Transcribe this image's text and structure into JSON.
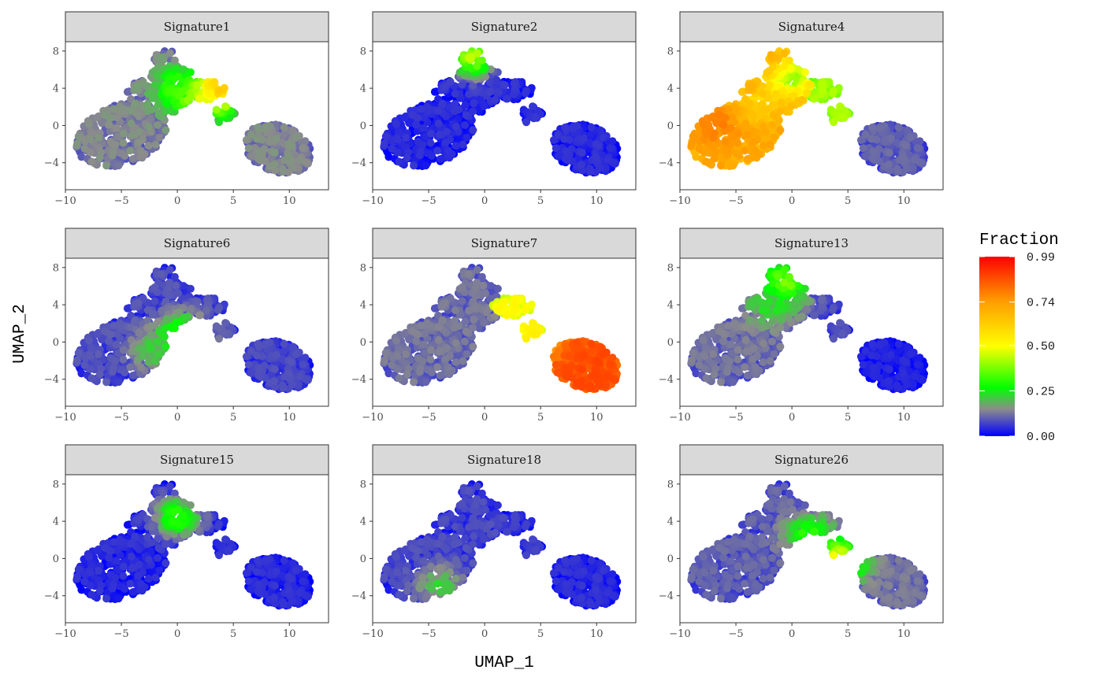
{
  "chart_data": {
    "type": "scatter",
    "description_free": true,
    "x_axis_label": "UMAP_1",
    "y_axis_label": "UMAP_2",
    "x_ticks": [
      -10,
      -5,
      0,
      5,
      10
    ],
    "y_ticks": [
      -4,
      0,
      4,
      8
    ],
    "x_tick_labels": [
      "−10",
      "−5",
      "0",
      "5",
      "10"
    ],
    "y_tick_labels": [
      "−4",
      "0",
      "4",
      "8"
    ],
    "xlim": [
      -10,
      13.5
    ],
    "ylim": [
      -6.9,
      9
    ],
    "colorbar": {
      "title": "Fraction",
      "range": [
        0,
        0.99
      ],
      "ticks": [
        0.0,
        0.25,
        0.5,
        0.74,
        0.99
      ],
      "tick_labels": [
        "0.00",
        "0.25",
        "0.50",
        "0.74",
        "0.99"
      ],
      "colors": [
        "#0000ff",
        "#8c8c8c",
        "#00ff00",
        "#ffff00",
        "#ff8c00",
        "#ff0000"
      ]
    },
    "panels": [
      {
        "title": "Signature1",
        "highlight_regions": [
          {
            "x": 3.5,
            "y": 4,
            "value": 0.72
          },
          {
            "x": 2,
            "y": 3,
            "value": 0.5
          },
          {
            "x": 0,
            "y": 4,
            "value": 0.3
          }
        ],
        "left_value": 0.12,
        "right_value": 0.12
      },
      {
        "title": "Signature2",
        "highlight_regions": [
          {
            "x": -1,
            "y": 7.5,
            "value": 0.42
          }
        ],
        "left_value": 0.02,
        "right_value": 0.02
      },
      {
        "title": "Signature4",
        "highlight_regions": [
          {
            "x": -6.5,
            "y": 0,
            "value": 0.78
          },
          {
            "x": -3,
            "y": 2,
            "value": 0.6
          },
          {
            "x": 0,
            "y": 5,
            "value": 0.38
          }
        ],
        "left_value": 0.7,
        "right_value": 0.08
      },
      {
        "title": "Signature6",
        "highlight_regions": [
          {
            "x": 0.5,
            "y": 0.5,
            "value": 0.4
          },
          {
            "x": -2,
            "y": -1,
            "value": 0.2
          }
        ],
        "left_value": 0.06,
        "right_value": 0.05
      },
      {
        "title": "Signature7",
        "highlight_regions": [
          {
            "x": 9,
            "y": -3.5,
            "value": 0.85
          },
          {
            "x": 4.5,
            "y": 0.5,
            "value": 0.5
          }
        ],
        "left_value": 0.1,
        "right_value": 0.85
      },
      {
        "title": "Signature13",
        "highlight_regions": [
          {
            "x": -0.5,
            "y": 6.5,
            "value": 0.38
          },
          {
            "x": -2,
            "y": 4,
            "value": 0.22
          }
        ],
        "left_value": 0.1,
        "right_value": 0.01
      },
      {
        "title": "Signature15",
        "highlight_regions": [
          {
            "x": 0,
            "y": 4.5,
            "value": 0.3
          }
        ],
        "left_value": 0.02,
        "right_value": 0.02
      },
      {
        "title": "Signature18",
        "highlight_regions": [
          {
            "x": -4,
            "y": -3,
            "value": 0.2
          }
        ],
        "left_value": 0.05,
        "right_value": 0.02
      },
      {
        "title": "Signature26",
        "highlight_regions": [
          {
            "x": 1.5,
            "y": 2.5,
            "value": 0.28
          },
          {
            "x": 4.2,
            "y": -0.3,
            "value": 0.5
          }
        ],
        "left_value": 0.08,
        "right_value": 0.1
      }
    ]
  }
}
